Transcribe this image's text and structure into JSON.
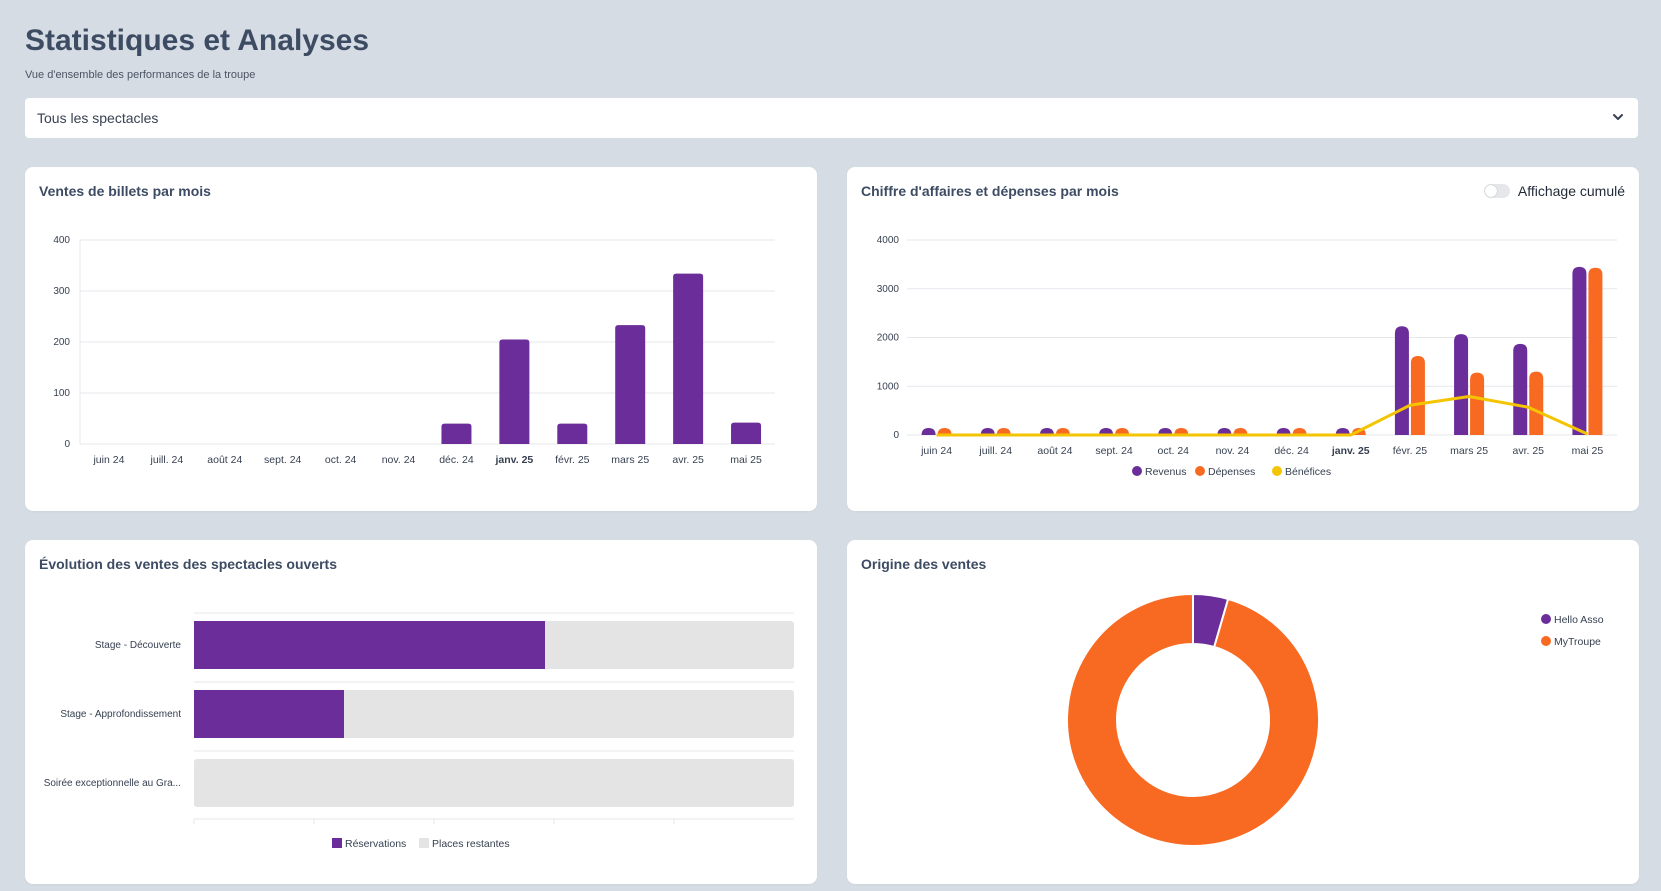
{
  "header": {
    "title": "Statistiques et Analyses",
    "subtitle": "Vue d'ensemble des performances de la troupe"
  },
  "filter": {
    "selected": "Tous les spectacles"
  },
  "colors": {
    "purple": "#6a2d99",
    "orange": "#f86a22",
    "yellow": "#f5c400",
    "track": "#e4e4e4",
    "grid": "#e5e7eb",
    "axis": "#374151"
  },
  "cards": {
    "ticket_sales": {
      "title": "Ventes de billets par mois"
    },
    "revenue": {
      "title": "Chiffre d'affaires et dépenses par mois",
      "toggle_label": "Affichage cumulé"
    },
    "progress": {
      "title": "Évolution des ventes des spectacles ouverts"
    },
    "origin": {
      "title": "Origine des ventes"
    }
  },
  "chart_data": [
    {
      "id": "ticket_sales",
      "type": "bar",
      "title": "Ventes de billets par mois",
      "categories": [
        "juin 24",
        "juill. 24",
        "août 24",
        "sept. 24",
        "oct. 24",
        "nov. 24",
        "déc. 24",
        "janv. 25",
        "févr. 25",
        "mars 25",
        "avr. 25",
        "mai 25"
      ],
      "highlight_category": "janv. 25",
      "values": [
        0,
        0,
        0,
        0,
        0,
        0,
        40,
        205,
        40,
        233,
        334,
        42
      ],
      "ylim": [
        0,
        400
      ],
      "yticks": [
        0,
        100,
        200,
        300,
        400
      ]
    },
    {
      "id": "revenue",
      "type": "bar",
      "title": "Chiffre d'affaires et dépenses par mois",
      "categories": [
        "juin 24",
        "juill. 24",
        "août 24",
        "sept. 24",
        "oct. 24",
        "nov. 24",
        "déc. 24",
        "janv. 25",
        "févr. 25",
        "mars 25",
        "avr. 25",
        "mai 25"
      ],
      "highlight_category": "janv. 25",
      "ylim": [
        0,
        4000
      ],
      "yticks": [
        0,
        1000,
        2000,
        3000,
        4000
      ],
      "legend": [
        "Revenus",
        "Dépenses",
        "Bénéfices"
      ],
      "series": [
        {
          "name": "Revenus",
          "kind": "bar",
          "values": [
            0,
            0,
            0,
            0,
            0,
            0,
            0,
            0,
            2230,
            2070,
            1870,
            3450
          ]
        },
        {
          "name": "Dépenses",
          "kind": "bar",
          "values": [
            0,
            0,
            0,
            0,
            0,
            0,
            0,
            0,
            1620,
            1280,
            1300,
            3430
          ]
        },
        {
          "name": "Bénéfices",
          "kind": "line",
          "values": [
            0,
            0,
            0,
            0,
            0,
            0,
            0,
            0,
            610,
            790,
            570,
            20
          ]
        }
      ]
    },
    {
      "id": "progress",
      "type": "bar",
      "orientation": "horizontal-stacked",
      "title": "Évolution des ventes des spectacles ouverts",
      "categories": [
        "Stage - Découverte",
        "Stage - Approfondissement",
        "Soirée exceptionnelle au Gra..."
      ],
      "legend": [
        "Réservations",
        "Places restantes"
      ],
      "reserved_fraction": [
        0.585,
        0.25,
        0.0
      ]
    },
    {
      "id": "origin",
      "type": "pie",
      "style": "donut",
      "title": "Origine des ventes",
      "labels": [
        "Hello Asso",
        "MyTroupe"
      ],
      "values": [
        4.5,
        95.5
      ]
    }
  ]
}
